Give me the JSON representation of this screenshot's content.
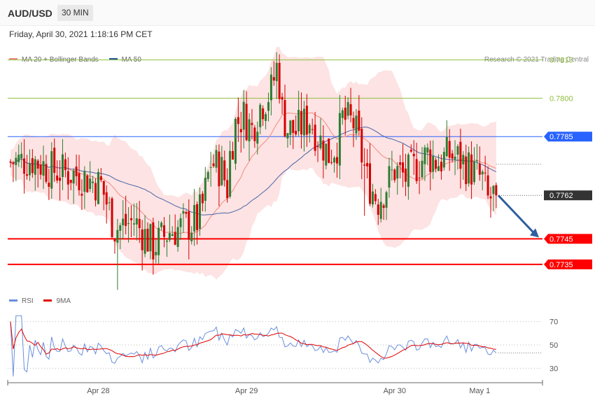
{
  "header": {
    "pair": "AUD/USD",
    "timeframe": "30 MIN",
    "datetime": "Friday, April 30, 2021 1:18:16 PM CET"
  },
  "legend": {
    "ma20_label": "MA 20 + Bollinger Bands",
    "ma50_label": "MA 50",
    "credit": "Research © 2021 Trading Central"
  },
  "rsi_legend": {
    "rsi_label": "RSI",
    "ma9_label": "9MA"
  },
  "colors": {
    "bull": "#2e7d32",
    "bear": "#d50000",
    "band_fill": "#fde3e3",
    "ma20": "#f28b82",
    "ma50": "#4a64a8",
    "rsi": "#6a8fdc",
    "rsi_ma": "#e00000",
    "resistance": "#8fbf3f",
    "pivot": "#2962ff",
    "support": "#ff0000",
    "current": "#333333",
    "arrow": "#2e5e9e"
  },
  "chart_data": [
    {
      "type": "candlestick",
      "ylim": [
        0.7718,
        0.7822
      ],
      "x_ticks": [
        {
          "index": 32,
          "label": "Apr 28"
        },
        {
          "index": 86,
          "label": "Apr 29"
        },
        {
          "index": 140,
          "label": "Apr 30"
        },
        {
          "index": 171,
          "label": "May 1"
        }
      ],
      "levels": [
        {
          "value": 0.7815,
          "label": "0.7815",
          "kind": "resistance"
        },
        {
          "value": 0.78,
          "label": "0.7800",
          "kind": "resistance"
        },
        {
          "value": 0.7785,
          "label": "0.7785",
          "kind": "pivot"
        },
        {
          "value": 0.7745,
          "label": "0.7745",
          "kind": "support"
        },
        {
          "value": 0.7735,
          "label": "0.7735",
          "kind": "support"
        }
      ],
      "current_price": {
        "value": 0.7762,
        "label": "0.7762"
      },
      "projection": {
        "from": 0.7762,
        "to": 0.7745
      }
    },
    {
      "type": "line",
      "name": "RSI",
      "ylim": [
        20,
        80
      ],
      "y_ticks": [
        70,
        50,
        30
      ]
    }
  ]
}
